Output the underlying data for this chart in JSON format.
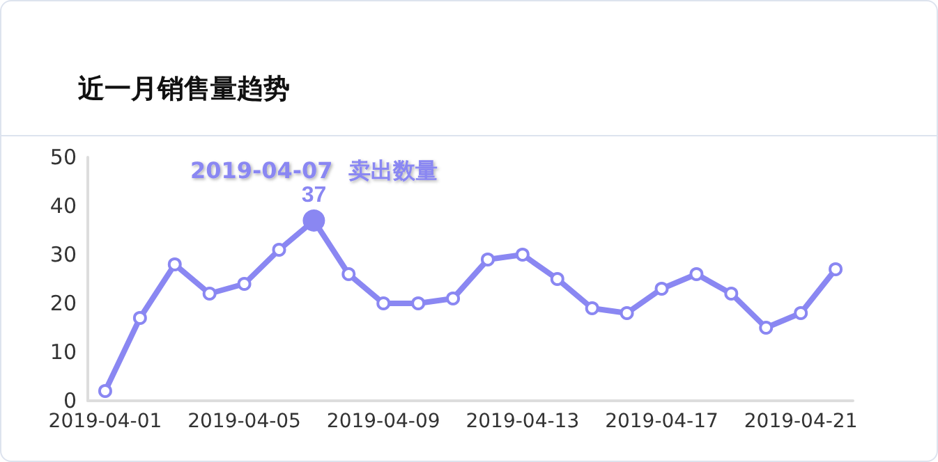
{
  "chart_data": {
    "type": "line",
    "title": "近一月销售量趋势",
    "categories": [
      "2019-04-01",
      null,
      null,
      null,
      "2019-04-05",
      null,
      null,
      null,
      "2019-04-09",
      null,
      null,
      null,
      "2019-04-13",
      null,
      null,
      null,
      "2019-04-17",
      null,
      null,
      null,
      "2019-04-21",
      null
    ],
    "series": [
      {
        "color": "#8a87f2",
        "values": [
          2,
          17,
          28,
          22,
          24,
          31,
          37,
          26,
          20,
          20,
          21,
          29,
          30,
          25,
          19,
          18,
          23,
          26,
          22,
          15,
          18,
          27
        ],
        "value_labels": [
          null,
          null,
          null,
          null,
          null,
          null,
          "37",
          null,
          null,
          null,
          null,
          null,
          null,
          null,
          null,
          null,
          null,
          null,
          null,
          null,
          null,
          null
        ]
      }
    ],
    "annotations": [
      "2019-04-07  卖出数量"
    ],
    "ylim": [
      0,
      50
    ],
    "yticks": [
      0,
      10,
      20,
      30,
      40,
      50
    ],
    "grid": false,
    "marker": "circle",
    "line_style": "solid"
  }
}
